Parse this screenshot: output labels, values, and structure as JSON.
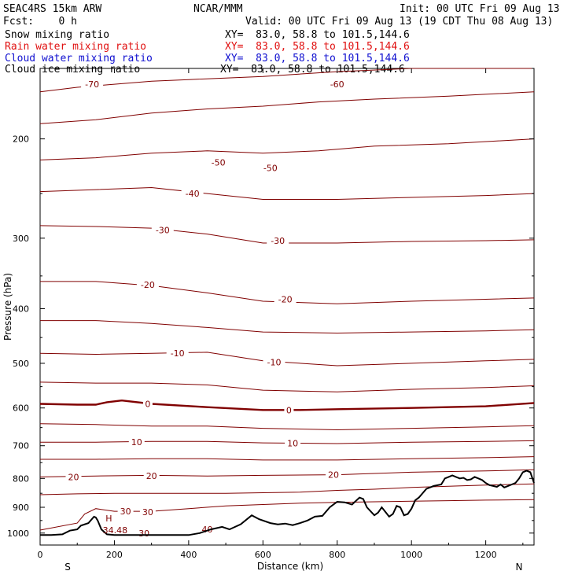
{
  "header": {
    "model": "SEAC4RS 15km ARW",
    "org": "NCAR/MMM",
    "init": "Init: 00 UTC Fri 09 Aug 13",
    "fcst": "Fcst:    0 h",
    "valid": "Valid: 00 UTC Fri 09 Aug 13 (19 CDT Thu 08 Aug 13)"
  },
  "fields": [
    {
      "name": "Snow mixing ratio",
      "xy": "XY=  83.0, 58.8 to 101.5,144.6",
      "color": "#000000"
    },
    {
      "name": "Rain water mixing ratio",
      "xy": "XY=  83.0, 58.8 to 101.5,144.6",
      "color": "#e01010"
    },
    {
      "name": "Cloud water mixing ratio",
      "xy": "XY=  83.0, 58.8 to 101.5,144.6",
      "color": "#1010d0"
    },
    {
      "name": "Cloud ice mixing ratio",
      "xy": "XY=  83.0, 58.8 to 101.5,144.6",
      "color": "#000000"
    }
  ],
  "chart_data": {
    "type": "line",
    "xlabel": "Distance (km)",
    "ylabel": "Pressure (hPa)",
    "xlim": [
      0,
      1330
    ],
    "ylim": [
      150,
      1050
    ],
    "x_ticks": [
      0,
      200,
      400,
      600,
      800,
      1000,
      1200
    ],
    "y_ticks": [
      200,
      300,
      400,
      500,
      600,
      700,
      800,
      900,
      1000
    ],
    "y_scale": "log",
    "end_labels": {
      "left": "S",
      "right": "N"
    },
    "contour_color": "#800000",
    "terrain_color": "#000000",
    "isotherms": [
      {
        "value": -70,
        "x": [
          0,
          100,
          200,
          300,
          400,
          600,
          800,
          1000,
          1200,
          1330
        ],
        "y": [
          165,
          162,
          160,
          158,
          157,
          155,
          152,
          150,
          148,
          146
        ]
      },
      {
        "value": -60,
        "x": [
          0,
          150,
          300,
          450,
          600,
          750,
          900,
          1100,
          1330
        ],
        "y": [
          188,
          185,
          180,
          177,
          175,
          172,
          170,
          168,
          165
        ]
      },
      {
        "value": -50,
        "x": [
          0,
          150,
          300,
          450,
          600,
          750,
          900,
          1100,
          1330
        ],
        "y": [
          218,
          216,
          212,
          210,
          212,
          210,
          206,
          204,
          200
        ]
      },
      {
        "value": -40,
        "x": [
          0,
          150,
          300,
          450,
          600,
          800,
          1000,
          1200,
          1330
        ],
        "y": [
          248,
          246,
          244,
          250,
          256,
          256,
          254,
          252,
          250
        ]
      },
      {
        "value": -30,
        "x": [
          0,
          150,
          300,
          450,
          600,
          800,
          1000,
          1200,
          1330
        ],
        "y": [
          285,
          286,
          288,
          295,
          306,
          306,
          304,
          303,
          302
        ]
      },
      {
        "value": -20,
        "x": [
          0,
          150,
          300,
          450,
          600,
          800,
          1000,
          1200,
          1330
        ],
        "y": [
          358,
          358,
          364,
          375,
          388,
          392,
          388,
          385,
          383
        ]
      },
      {
        "value": -15,
        "x": [
          0,
          150,
          300,
          450,
          600,
          800,
          1000,
          1200,
          1330
        ],
        "y": [
          420,
          420,
          425,
          432,
          440,
          442,
          440,
          438,
          436
        ]
      },
      {
        "value": -10,
        "x": [
          0,
          150,
          300,
          450,
          600,
          800,
          1000,
          1200,
          1330
        ],
        "y": [
          480,
          482,
          480,
          478,
          495,
          505,
          500,
          495,
          492
        ]
      },
      {
        "value": -5,
        "x": [
          0,
          150,
          300,
          450,
          600,
          800,
          1000,
          1200,
          1330
        ],
        "y": [
          540,
          542,
          542,
          546,
          558,
          562,
          556,
          552,
          548
        ]
      },
      {
        "value": 0,
        "x": [
          0,
          100,
          150,
          180,
          220,
          300,
          450,
          600,
          700,
          800,
          1000,
          1200,
          1330
        ],
        "y": [
          590,
          592,
          592,
          586,
          582,
          590,
          598,
          605,
          605,
          603,
          600,
          596,
          588
        ]
      },
      {
        "value": 5,
        "x": [
          0,
          150,
          300,
          450,
          600,
          800,
          1000,
          1200,
          1330
        ],
        "y": [
          640,
          642,
          646,
          646,
          652,
          656,
          652,
          648,
          645
        ]
      },
      {
        "value": 10,
        "x": [
          0,
          150,
          300,
          450,
          600,
          800,
          1000,
          1200,
          1330
        ],
        "y": [
          690,
          690,
          688,
          688,
          692,
          694,
          690,
          688,
          686
        ]
      },
      {
        "value": 15,
        "x": [
          0,
          150,
          300,
          450,
          600,
          800,
          1000,
          1200,
          1330
        ],
        "y": [
          740,
          740,
          738,
          738,
          742,
          742,
          738,
          735,
          732
        ]
      },
      {
        "value": 20,
        "x": [
          0,
          150,
          300,
          450,
          600,
          800,
          1000,
          1200,
          1330
        ],
        "y": [
          795,
          792,
          790,
          792,
          790,
          788,
          780,
          776,
          772
        ]
      },
      {
        "value": 25,
        "x": [
          0,
          100,
          200,
          300,
          400,
          500,
          600,
          700,
          800,
          900,
          1000,
          1100,
          1200,
          1330
        ],
        "y": [
          855,
          852,
          850,
          850,
          850,
          850,
          848,
          846,
          840,
          836,
          830,
          826,
          822,
          818
        ]
      },
      {
        "value": 30,
        "x": [
          0,
          100,
          120,
          150,
          200,
          300,
          400,
          500,
          600,
          700,
          800,
          900,
          1000,
          1100,
          1200,
          1330
        ],
        "y": [
          988,
          960,
          925,
          905,
          915,
          915,
          905,
          895,
          890,
          885,
          882,
          880,
          878,
          876,
          874,
          872
        ]
      }
    ],
    "terrain": {
      "x": [
        0,
        30,
        60,
        80,
        100,
        110,
        130,
        145,
        150,
        155,
        165,
        180,
        200,
        250,
        300,
        350,
        400,
        430,
        460,
        490,
        510,
        540,
        570,
        590,
        620,
        640,
        660,
        680,
        700,
        720,
        740,
        760,
        780,
        800,
        820,
        840,
        860,
        870,
        880,
        900,
        910,
        920,
        940,
        950,
        960,
        970,
        980,
        990,
        1000,
        1010,
        1020,
        1040,
        1060,
        1080,
        1090,
        1100,
        1110,
        1120,
        1130,
        1140,
        1150,
        1160,
        1170,
        1180,
        1190,
        1200,
        1210,
        1220,
        1230,
        1240,
        1250,
        1260,
        1270,
        1280,
        1290,
        1300,
        1310,
        1320,
        1330
      ],
      "y": [
        1008,
        1008,
        1005,
        990,
        985,
        970,
        960,
        935,
        938,
        950,
        985,
        1005,
        1008,
        1008,
        1008,
        1008,
        1008,
        1000,
        985,
        975,
        985,
        965,
        930,
        945,
        960,
        965,
        962,
        968,
        960,
        950,
        935,
        932,
        900,
        880,
        882,
        890,
        865,
        870,
        900,
        930,
        920,
        900,
        935,
        925,
        895,
        900,
        930,
        925,
        905,
        875,
        865,
        835,
        825,
        820,
        800,
        795,
        790,
        795,
        800,
        798,
        805,
        803,
        795,
        800,
        805,
        815,
        822,
        825,
        828,
        820,
        830,
        825,
        820,
        815,
        800,
        780,
        775,
        780,
        815
      ]
    },
    "contour_labels": [
      {
        "text": "-70",
        "x": 140,
        "y": 160
      },
      {
        "text": "-60",
        "x": 800,
        "y": 160
      },
      {
        "text": "-50",
        "x": 480,
        "y": 220
      },
      {
        "text": "-50",
        "x": 620,
        "y": 225
      },
      {
        "text": "-40",
        "x": 410,
        "y": 250
      },
      {
        "text": "-30",
        "x": 330,
        "y": 290
      },
      {
        "text": "-30",
        "x": 640,
        "y": 303
      },
      {
        "text": "-20",
        "x": 290,
        "y": 363
      },
      {
        "text": "-20",
        "x": 660,
        "y": 385
      },
      {
        "text": "-10",
        "x": 370,
        "y": 480
      },
      {
        "text": "-10",
        "x": 630,
        "y": 498
      },
      {
        "text": "0",
        "x": 290,
        "y": 590
      },
      {
        "text": "0",
        "x": 670,
        "y": 605
      },
      {
        "text": "10",
        "x": 260,
        "y": 690
      },
      {
        "text": "10",
        "x": 680,
        "y": 693
      },
      {
        "text": "20",
        "x": 90,
        "y": 795
      },
      {
        "text": "20",
        "x": 300,
        "y": 792
      },
      {
        "text": "20",
        "x": 790,
        "y": 788
      },
      {
        "text": "30",
        "x": 230,
        "y": 915
      },
      {
        "text": "30",
        "x": 290,
        "y": 917
      },
      {
        "text": "30",
        "x": 280,
        "y": 1000
      },
      {
        "text": "40",
        "x": 450,
        "y": 985
      }
    ],
    "max_marker": {
      "letter": "H",
      "value": "34.48",
      "x": 185,
      "y": 960
    }
  }
}
